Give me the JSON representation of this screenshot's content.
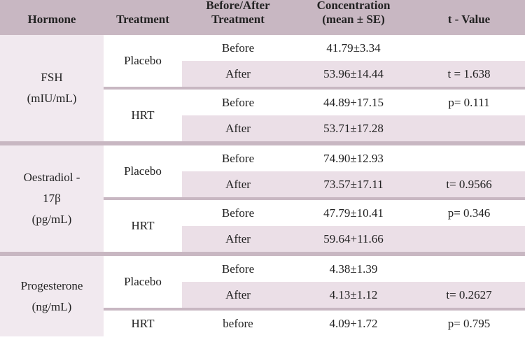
{
  "table": {
    "header": [
      [
        "Hormone"
      ],
      [
        "Treatment"
      ],
      [
        "Before/After",
        "Treatment"
      ],
      [
        "Concentration",
        "(mean ± SE)"
      ],
      [
        "t - Value"
      ]
    ],
    "groups": [
      {
        "hormone": [
          "FSH",
          "(mIU/mL)"
        ],
        "treatments": [
          {
            "name": "Placebo",
            "rows": [
              {
                "when": "Before",
                "conc": "41.79±3.34"
              },
              {
                "when": "After",
                "conc": "53.96±14.44",
                "stat": "t = 1.638"
              }
            ]
          },
          {
            "name": "HRT",
            "rows": [
              {
                "when": "Before",
                "conc": "44.89+17.15",
                "stat": "p= 0.111"
              },
              {
                "when": "After",
                "conc": "53.71±17.28"
              }
            ]
          }
        ]
      },
      {
        "hormone": [
          "Oestradiol -",
          "17β",
          "(pg/mL)"
        ],
        "treatments": [
          {
            "name": "Placebo",
            "rows": [
              {
                "when": "Before",
                "conc": "74.90±12.93"
              },
              {
                "when": "After",
                "conc": "73.57±17.11",
                "stat": "t= 0.9566"
              }
            ]
          },
          {
            "name": "HRT",
            "rows": [
              {
                "when": "Before",
                "conc": "47.79±10.41",
                "stat": "p= 0.346"
              },
              {
                "when": "After",
                "conc": "59.64+11.66"
              }
            ]
          }
        ]
      },
      {
        "hormone": [
          "Progesterone",
          "(ng/mL)"
        ],
        "treatments": [
          {
            "name": "Placebo",
            "rows": [
              {
                "when": "Before",
                "conc": "4.38±1.39"
              },
              {
                "when": "After",
                "conc": "4.13±1.12",
                "stat": "t= 0.2627"
              }
            ]
          },
          {
            "name": "HRT",
            "rows": [
              {
                "when": "before",
                "conc": "4.09+1.72",
                "stat": "p= 0.795"
              }
            ]
          }
        ]
      }
    ]
  }
}
